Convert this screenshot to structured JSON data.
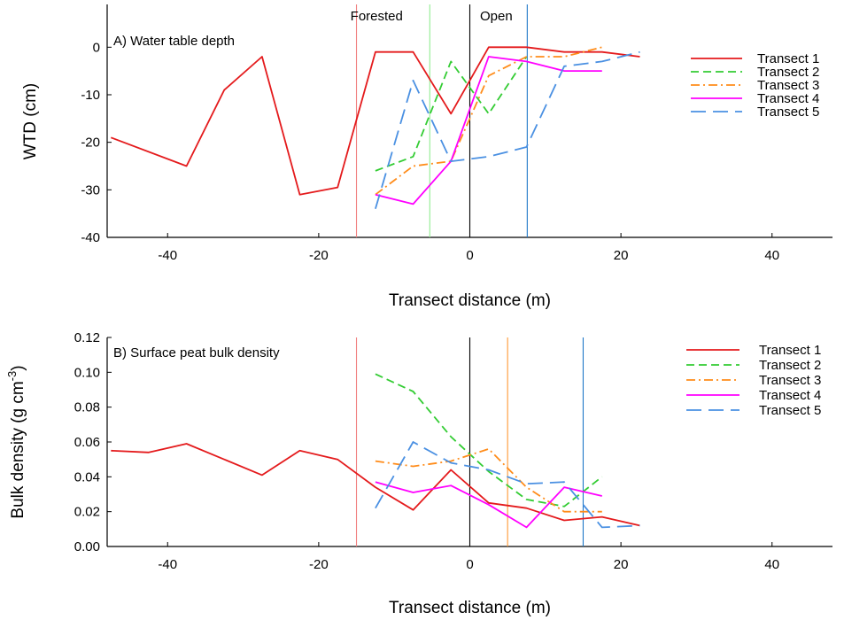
{
  "chart_data": [
    {
      "type": "line",
      "title": "A) Water table depth",
      "xlabel": "Transect distance (m)",
      "ylabel": "WTD (cm)",
      "xlim": [
        -48,
        48
      ],
      "ylim": [
        -40,
        9
      ],
      "xticks": [
        -40,
        -20,
        0,
        20,
        40
      ],
      "yticks": [
        0,
        -10,
        -20,
        -30,
        -40
      ],
      "zone_labels": [
        "Forested",
        "Open"
      ],
      "legend": "right",
      "vlines": [
        {
          "x": -15,
          "color": "#f08080"
        },
        {
          "x": -5.3,
          "color": "#90ee90"
        },
        {
          "x": 0,
          "color": "#000000"
        },
        {
          "x": 7.6,
          "color": "#1f78c8"
        }
      ],
      "series": [
        {
          "name": "Transect 1",
          "color": "#e41a1c",
          "dash": "solid",
          "x": [
            -47.5,
            -37.5,
            -32.5,
            -27.5,
            -22.5,
            -17.5,
            -12.5,
            -7.5,
            -2.5,
            2.5,
            7.5,
            12.5,
            17.5,
            22.5
          ],
          "y": [
            -19,
            -25,
            -9,
            -2,
            -31,
            -29.5,
            -1,
            -1,
            -14,
            0,
            0,
            -1,
            -1,
            -2
          ]
        },
        {
          "name": "Transect 2",
          "color": "#33cc33",
          "dash": "dash",
          "x": [
            -12.5,
            -7.5,
            -2.5,
            2.5,
            7.5
          ],
          "y": [
            -26,
            -23,
            -3,
            -14,
            -2
          ]
        },
        {
          "name": "Transect 3",
          "color": "#ff8c1a",
          "dash": "dashdot",
          "x": [
            -12.5,
            -7.5,
            -2.5,
            2.5,
            7.5,
            12.5,
            17.5
          ],
          "y": [
            -31,
            -25,
            -24,
            -6,
            -2,
            -2,
            0
          ]
        },
        {
          "name": "Transect 4",
          "color": "#ff00ff",
          "dash": "solid",
          "x": [
            -12.5,
            -7.5,
            -2.5,
            2.5,
            7.5,
            12.5,
            17.5
          ],
          "y": [
            -31,
            -33,
            -24,
            -2,
            -3,
            -5,
            -5
          ]
        },
        {
          "name": "Transect 5",
          "color": "#4a90e2",
          "dash": "longdash",
          "x": [
            -12.5,
            -7.5,
            -2.5,
            2.5,
            7.5,
            12.5,
            17.5,
            22.5
          ],
          "y": [
            -34,
            -7,
            -24,
            -23,
            -21,
            -4,
            -3,
            -1
          ]
        }
      ]
    },
    {
      "type": "line",
      "title": "B) Surface peat bulk density",
      "xlabel": "Transect distance (m)",
      "ylabel": "Bulk density (g cm",
      "ylabel_sup": "-3",
      "ylabel_end": ")",
      "xlim": [
        -48,
        48
      ],
      "ylim": [
        0,
        0.12
      ],
      "xticks": [
        -40,
        -20,
        0,
        20,
        40
      ],
      "yticks": [
        "0.00",
        "0.02",
        "0.04",
        "0.06",
        "0.08",
        "0.10",
        "0.12"
      ],
      "legend": "top-right",
      "vlines": [
        {
          "x": -15,
          "color": "#f08080"
        },
        {
          "x": 0,
          "color": "#000000"
        },
        {
          "x": 5,
          "color": "#ff9933"
        },
        {
          "x": 15,
          "color": "#1f78c8"
        }
      ],
      "series": [
        {
          "name": "Transect 1",
          "color": "#e41a1c",
          "dash": "solid",
          "x": [
            -47.5,
            -42.5,
            -37.5,
            -32.5,
            -27.5,
            -22.5,
            -17.5,
            -12.5,
            -7.5,
            -2.5,
            2.5,
            7.5,
            12.5,
            17.5,
            22.5
          ],
          "y": [
            0.055,
            0.054,
            0.059,
            0.05,
            0.041,
            0.055,
            0.05,
            0.034,
            0.021,
            0.044,
            0.025,
            0.022,
            0.015,
            0.017,
            0.012
          ]
        },
        {
          "name": "Transect 2",
          "color": "#33cc33",
          "dash": "dash",
          "x": [
            -12.5,
            -7.5,
            -2.5,
            2.5,
            7.5,
            12.5,
            17.5
          ],
          "y": [
            0.099,
            0.089,
            0.063,
            0.043,
            0.027,
            0.023,
            0.04
          ]
        },
        {
          "name": "Transect 3",
          "color": "#ff8c1a",
          "dash": "dashdot",
          "x": [
            -12.5,
            -7.5,
            -2.5,
            2.5,
            7.5,
            12.5,
            17.5
          ],
          "y": [
            0.049,
            0.046,
            0.049,
            0.056,
            0.034,
            0.02,
            0.02
          ]
        },
        {
          "name": "Transect 4",
          "color": "#ff00ff",
          "dash": "solid",
          "x": [
            -12.5,
            -7.5,
            -2.5,
            2.5,
            7.5,
            12.5,
            17.5
          ],
          "y": [
            0.037,
            0.031,
            0.035,
            0.024,
            0.011,
            0.034,
            0.029
          ]
        },
        {
          "name": "Transect 5",
          "color": "#4a90e2",
          "dash": "longdash",
          "x": [
            -12.5,
            -7.5,
            -2.5,
            2.5,
            7.5,
            12.5,
            17.5,
            22.5
          ],
          "y": [
            0.022,
            0.06,
            0.048,
            0.044,
            0.036,
            0.037,
            0.011,
            0.012
          ]
        }
      ]
    }
  ]
}
